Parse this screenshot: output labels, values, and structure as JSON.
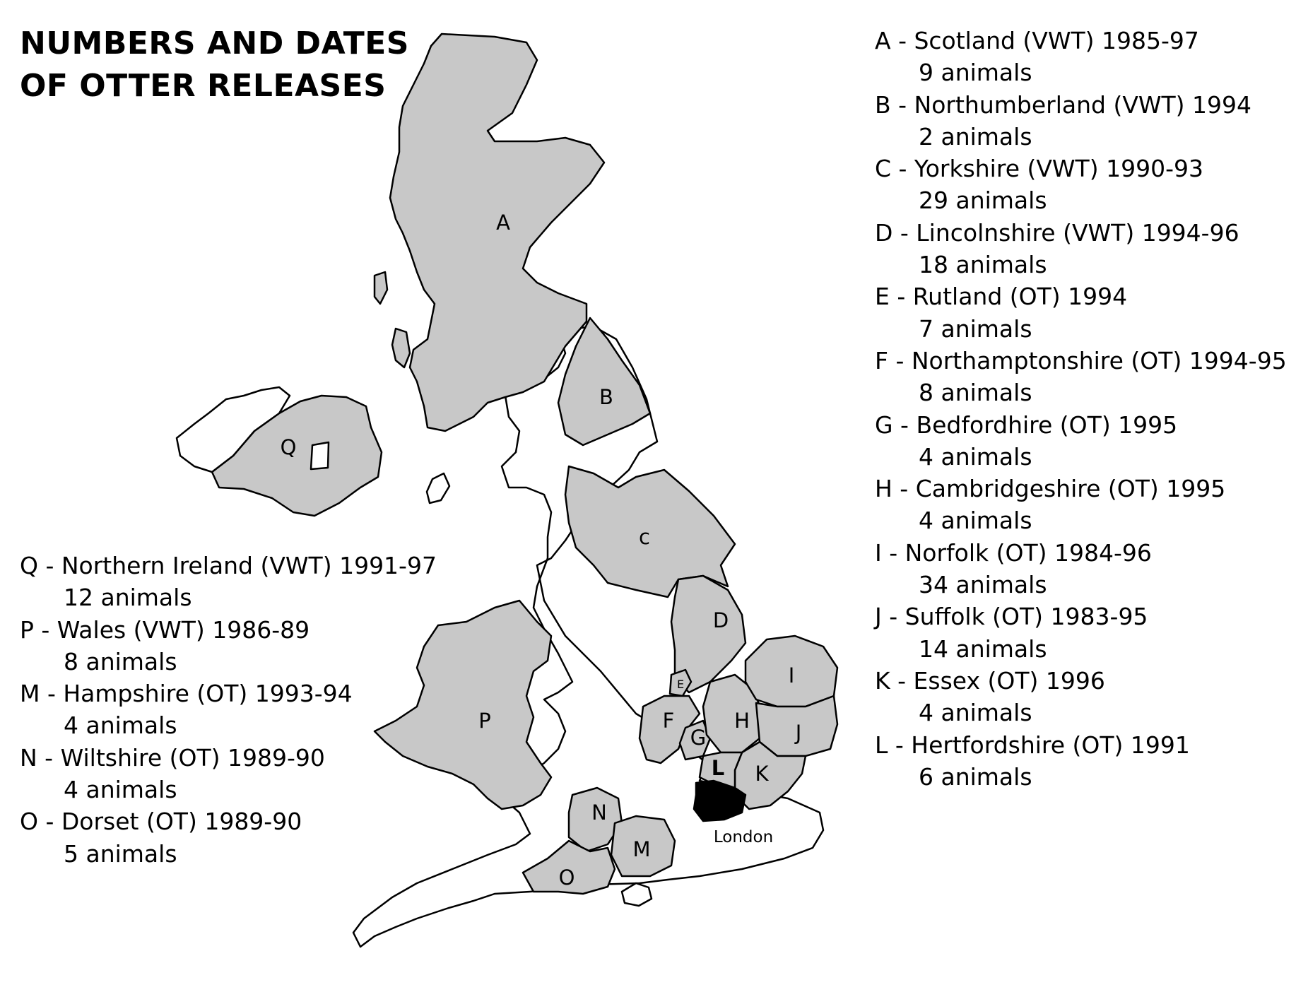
{
  "title_lines": [
    "NUMBERS AND DATES",
    "OF OTTER RELEASES"
  ],
  "colors": {
    "release_area": "#c8c8c8",
    "outline": "#000000",
    "london": "#000000",
    "land": "#ffffff"
  },
  "map_labels": {
    "A": "A",
    "B": "B",
    "C": "c",
    "D": "D",
    "E": "E",
    "F": "F",
    "G": "G",
    "H": "H",
    "I": "I",
    "J": "J",
    "K": "K",
    "L": "L",
    "M": "M",
    "N": "N",
    "O": "O",
    "P": "P",
    "Q": "Q",
    "london": "London"
  },
  "legend_right": [
    {
      "name": "A - Scotland (VWT) 1985-97",
      "count": "9 animals"
    },
    {
      "name": "B - Northumberland (VWT) 1994",
      "count": "2 animals"
    },
    {
      "name": "C - Yorkshire (VWT) 1990-93",
      "count": "29 animals"
    },
    {
      "name": "D - Lincolnshire (VWT) 1994-96",
      "count": "18 animals"
    },
    {
      "name": "E - Rutland (OT) 1994",
      "count": "7 animals"
    },
    {
      "name": "F - Northamptonshire (OT) 1994-95",
      "count": "8 animals"
    },
    {
      "name": "G - Bedfordhire (OT) 1995",
      "count": "4 animals"
    },
    {
      "name": "H - Cambridgeshire (OT) 1995",
      "count": "4 animals"
    },
    {
      "name": "I - Norfolk (OT) 1984-96",
      "count": "34 animals"
    },
    {
      "name": "J - Suffolk (OT) 1983-95",
      "count": "14 animals"
    },
    {
      "name": "K - Essex (OT) 1996",
      "count": "4 animals"
    },
    {
      "name": "L - Hertfordshire (OT) 1991",
      "count": "6 animals"
    }
  ],
  "legend_left": [
    {
      "name": "Q - Northern Ireland (VWT) 1991-97",
      "count": "12 animals"
    },
    {
      "name": "P - Wales (VWT) 1986-89",
      "count": "8 animals"
    },
    {
      "name": "M - Hampshire (OT) 1993-94",
      "count": "4 animals"
    },
    {
      "name": "N - Wiltshire (OT) 1989-90",
      "count": "4 animals"
    },
    {
      "name": "O - Dorset (OT) 1989-90",
      "count": "5 animals"
    }
  ]
}
